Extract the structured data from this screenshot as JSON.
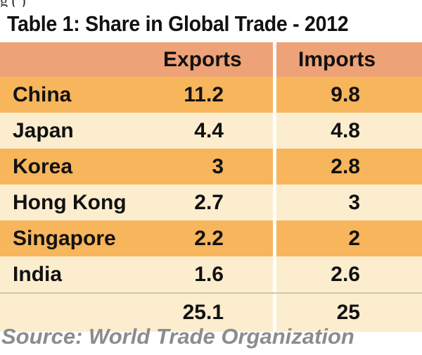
{
  "top_fragment": "g                        (                  )",
  "title": "Table 1: Share in Global Trade - 2012",
  "columns": {
    "exports": "Exports",
    "imports": "Imports"
  },
  "rows": [
    {
      "country": "China",
      "exports": "11.2",
      "imports": "9.8"
    },
    {
      "country": "Japan",
      "exports": "4.4",
      "imports": "4.8"
    },
    {
      "country": "Korea",
      "exports": "3",
      "imports": "2.8"
    },
    {
      "country": "Hong Kong",
      "exports": "2.7",
      "imports": "3"
    },
    {
      "country": "Singapore",
      "exports": "2.2",
      "imports": "2"
    },
    {
      "country": "India",
      "exports": "1.6",
      "imports": "2.6"
    }
  ],
  "total": {
    "exports": "25.1",
    "imports": "25"
  },
  "source": "Source: World Trade Organization",
  "colors": {
    "header_bg": "#eea277",
    "odd_row_bg": "#f7b55c",
    "even_row_bg": "#fcedce",
    "source_text": "#8c8c8c"
  }
}
